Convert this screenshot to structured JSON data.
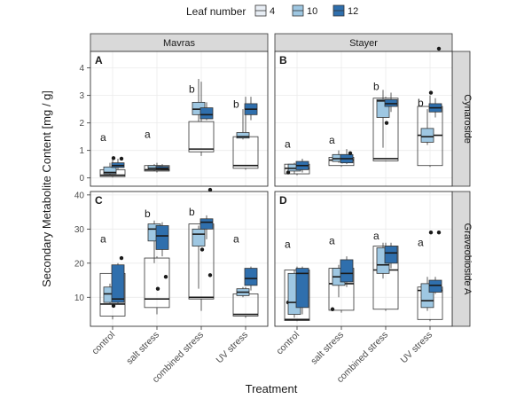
{
  "chart_data": {
    "type": "boxplot",
    "xlabel": "Treatment",
    "ylabel": "Secondary Metabolite Content [mg / g]",
    "legend": {
      "title": "Leaf number",
      "position": "top",
      "entries": [
        {
          "name": "4",
          "color": "#e8eef5"
        },
        {
          "name": "10",
          "color": "#9ec7e2"
        },
        {
          "name": "12",
          "color": "#2f6fad"
        }
      ]
    },
    "categories": [
      "control",
      "salt stress",
      "combined stress",
      "UV stress"
    ],
    "col_strips": [
      "Mavras",
      "Stayer"
    ],
    "row_strips": [
      "Cynaroside",
      "Graveobioside A"
    ],
    "rows": [
      {
        "ylim": [
          -0.3,
          4.6
        ],
        "yticks": [
          0,
          1,
          2,
          3,
          4
        ]
      },
      {
        "ylim": [
          1.5,
          41
        ],
        "yticks": [
          10,
          20,
          30,
          40
        ]
      }
    ],
    "panels": [
      {
        "tag": "A",
        "row": 0,
        "col": 0,
        "letters": [
          "a",
          "a",
          "b",
          "b"
        ],
        "letter_y": [
          1.35,
          1.45,
          3.1,
          2.55
        ],
        "groups": [
          {
            "boxes": [
              [
                0.02,
                0.05,
                0.1,
                0.3,
                0.7
              ],
              [
                0.1,
                0.15,
                0.2,
                0.4,
                0.55
              ],
              [
                0.3,
                0.38,
                0.45,
                0.55,
                0.7
              ]
            ],
            "outliers": [
              [],
              [
                0.72
              ],
              [
                0.7
              ]
            ]
          },
          {
            "boxes": [
              [
                0.2,
                0.25,
                0.3,
                0.45,
                0.55
              ],
              [
                0.25,
                0.3,
                0.35,
                0.45,
                0.5
              ],
              [
                0.3,
                0.32,
                0.35,
                0.42,
                0.5
              ]
            ],
            "outliers": [
              [],
              [],
              []
            ]
          },
          {
            "boxes": [
              [
                0.8,
                0.95,
                1.05,
                2.05,
                3.5
              ],
              [
                2.05,
                2.3,
                2.5,
                2.75,
                3.6
              ],
              [
                2.1,
                2.15,
                2.3,
                2.55,
                2.75
              ]
            ],
            "outliers": [
              [],
              [],
              []
            ]
          },
          {
            "boxes": [
              [
                0.3,
                0.35,
                0.45,
                1.5,
                2.95
              ],
              [
                1.4,
                1.45,
                1.5,
                1.65,
                2.5
              ],
              [
                2.1,
                2.3,
                2.5,
                2.7,
                2.95
              ]
            ],
            "outliers": [
              [],
              [],
              []
            ]
          }
        ]
      },
      {
        "tag": "B",
        "row": 0,
        "col": 1,
        "letters": [
          "a",
          "a",
          "b",
          "b"
        ],
        "letter_y": [
          1.1,
          1.25,
          3.2,
          2.6
        ],
        "groups": [
          {
            "boxes": [
              [
                0.1,
                0.15,
                0.35,
                0.5,
                0.55
              ],
              [
                0.15,
                0.25,
                0.35,
                0.5,
                0.55
              ],
              [
                0.2,
                0.3,
                0.45,
                0.6,
                0.7
              ]
            ],
            "outliers": [
              [
                0.2
              ],
              [],
              []
            ]
          },
          {
            "boxes": [
              [
                0.4,
                0.45,
                0.65,
                0.75,
                0.85
              ],
              [
                0.55,
                0.6,
                0.7,
                0.85,
                1.0
              ],
              [
                0.5,
                0.55,
                0.7,
                0.85,
                1.05
              ]
            ],
            "outliers": [
              [],
              [
                0.6
              ],
              [
                0.9
              ]
            ]
          },
          {
            "boxes": [
              [
                0.6,
                0.62,
                0.7,
                2.9,
                2.95
              ],
              [
                1.1,
                2.2,
                2.8,
                2.85,
                3.2
              ],
              [
                2.4,
                2.6,
                2.7,
                2.85,
                3.1
              ]
            ],
            "outliers": [
              [],
              [
                2.0
              ],
              []
            ]
          },
          {
            "boxes": [
              [
                0.4,
                0.45,
                1.55,
                2.6,
                3.0
              ],
              [
                1.2,
                1.3,
                1.5,
                1.8,
                2.5
              ],
              [
                2.2,
                2.4,
                2.55,
                2.7,
                2.9
              ]
            ],
            "outliers": [
              [],
              [
                3.1
              ],
              [
                4.7
              ]
            ]
          }
        ]
      },
      {
        "tag": "C",
        "row": 1,
        "col": 0,
        "letters": [
          "a",
          "b",
          "b",
          "a"
        ],
        "letter_y": [
          26,
          33.5,
          34,
          26
        ],
        "groups": [
          {
            "boxes": [
              [
                3.5,
                4.5,
                8,
                17,
                18.5
              ],
              [
                8,
                8.5,
                11,
                13,
                14
              ],
              [
                8,
                8.5,
                9.5,
                19.5,
                20
              ]
            ],
            "outliers": [
              [],
              [
                7.5
              ],
              [
                21.5
              ]
            ]
          },
          {
            "boxes": [
              [
                5,
                7,
                9.5,
                21.5,
                22
              ],
              [
                20,
                26.5,
                30,
                31.5,
                32.5
              ],
              [
                22,
                24,
                28,
                31,
                32
              ]
            ],
            "outliers": [
              [],
              [
                12.5
              ],
              [
                16
              ]
            ]
          },
          {
            "boxes": [
              [
                6,
                9.5,
                10,
                31.5,
                32
              ],
              [
                12.5,
                25,
                28.5,
                30,
                31
              ],
              [
                27,
                30,
                32,
                33,
                34
              ]
            ],
            "outliers": [
              [],
              [
                24
              ],
              [
                41.5,
                16.5
              ]
            ]
          },
          {
            "boxes": [
              [
                4,
                4.5,
                5,
                11,
                13
              ],
              [
                10,
                10.5,
                11.5,
                12.5,
                13
              ],
              [
                12,
                13.5,
                15.5,
                18.5,
                19
              ]
            ],
            "outliers": [
              [],
              [],
              []
            ]
          }
        ]
      },
      {
        "tag": "D",
        "row": 1,
        "col": 1,
        "letters": [
          "a",
          "a",
          "a",
          "a"
        ],
        "letter_y": [
          24.5,
          25.5,
          27,
          25
        ],
        "groups": [
          {
            "boxes": [
              [
                3,
                3.2,
                3.5,
                18,
                19
              ],
              [
                4,
                5,
                8.5,
                17,
                18
              ],
              [
                5,
                7,
                17,
                18.5,
                19
              ]
            ],
            "outliers": [
              [
                8.5
              ],
              [],
              []
            ]
          },
          {
            "boxes": [
              [
                5.5,
                6.2,
                14,
                18.5,
                19.5
              ],
              [
                10,
                13.5,
                16,
                18.5,
                19.5
              ],
              [
                13,
                14.5,
                17,
                21,
                22
              ]
            ],
            "outliers": [
              [
                6.5
              ],
              [],
              []
            ]
          },
          {
            "boxes": [
              [
                6,
                6.5,
                18,
                25,
                26
              ],
              [
                15.5,
                17,
                19.5,
                24.5,
                26
              ],
              [
                18.5,
                20,
                23,
                25,
                26
              ]
            ],
            "outliers": [
              [],
              [],
              []
            ]
          },
          {
            "boxes": [
              [
                3,
                3.5,
                12,
                13,
                14
              ],
              [
                6,
                7,
                9,
                14,
                16
              ],
              [
                11,
                11.5,
                13.5,
                15,
                16
              ]
            ],
            "outliers": [
              [],
              [
                29
              ],
              [
                29
              ]
            ]
          }
        ]
      }
    ]
  }
}
